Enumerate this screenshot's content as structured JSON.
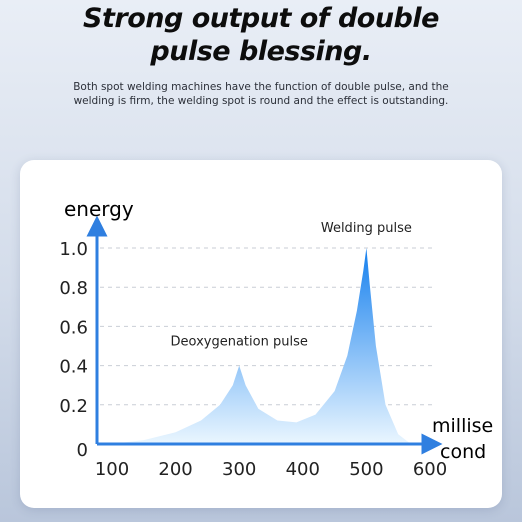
{
  "header": {
    "title_line1": "Strong output of double",
    "title_line2": "pulse blessing.",
    "description": "Both spot welding machines have the function of double pulse, and the welding is firm, the welding spot is round and the effect is outstanding."
  },
  "colors": {
    "axis": "#2f7fe0",
    "fill_top": "#1680ee",
    "fill_bottom": "#eaf6ff",
    "grid": "#c9ced6",
    "text": "#222222"
  },
  "chart_data": {
    "type": "area",
    "ylabel": "energy",
    "xlabel": "millise cond",
    "xlabel_lines": [
      "millise",
      "cond"
    ],
    "x_ticks": [
      "100",
      "200",
      "300",
      "400",
      "500",
      "600"
    ],
    "y_ticks": [
      "0",
      "0.2",
      "0.4",
      "0.6",
      "0.8",
      "1.0"
    ],
    "xlim": [
      100,
      600
    ],
    "ylim": [
      0,
      1.0
    ],
    "grid": true,
    "annotations": [
      {
        "text": "Deoxygenation pulse",
        "x": 300,
        "y": 0.42
      },
      {
        "text": "Welding pulse",
        "x": 500,
        "y": 1.0
      }
    ],
    "series": [
      {
        "x": [
          100,
          150,
          200,
          240,
          270,
          290,
          300,
          310,
          330,
          360,
          390,
          420,
          450,
          470,
          485,
          495,
          500,
          505,
          515,
          530,
          550,
          570
        ],
        "y": [
          0.0,
          0.02,
          0.06,
          0.12,
          0.2,
          0.3,
          0.4,
          0.3,
          0.18,
          0.12,
          0.11,
          0.15,
          0.27,
          0.45,
          0.68,
          0.88,
          1.0,
          0.82,
          0.5,
          0.2,
          0.05,
          0.0
        ]
      }
    ]
  }
}
